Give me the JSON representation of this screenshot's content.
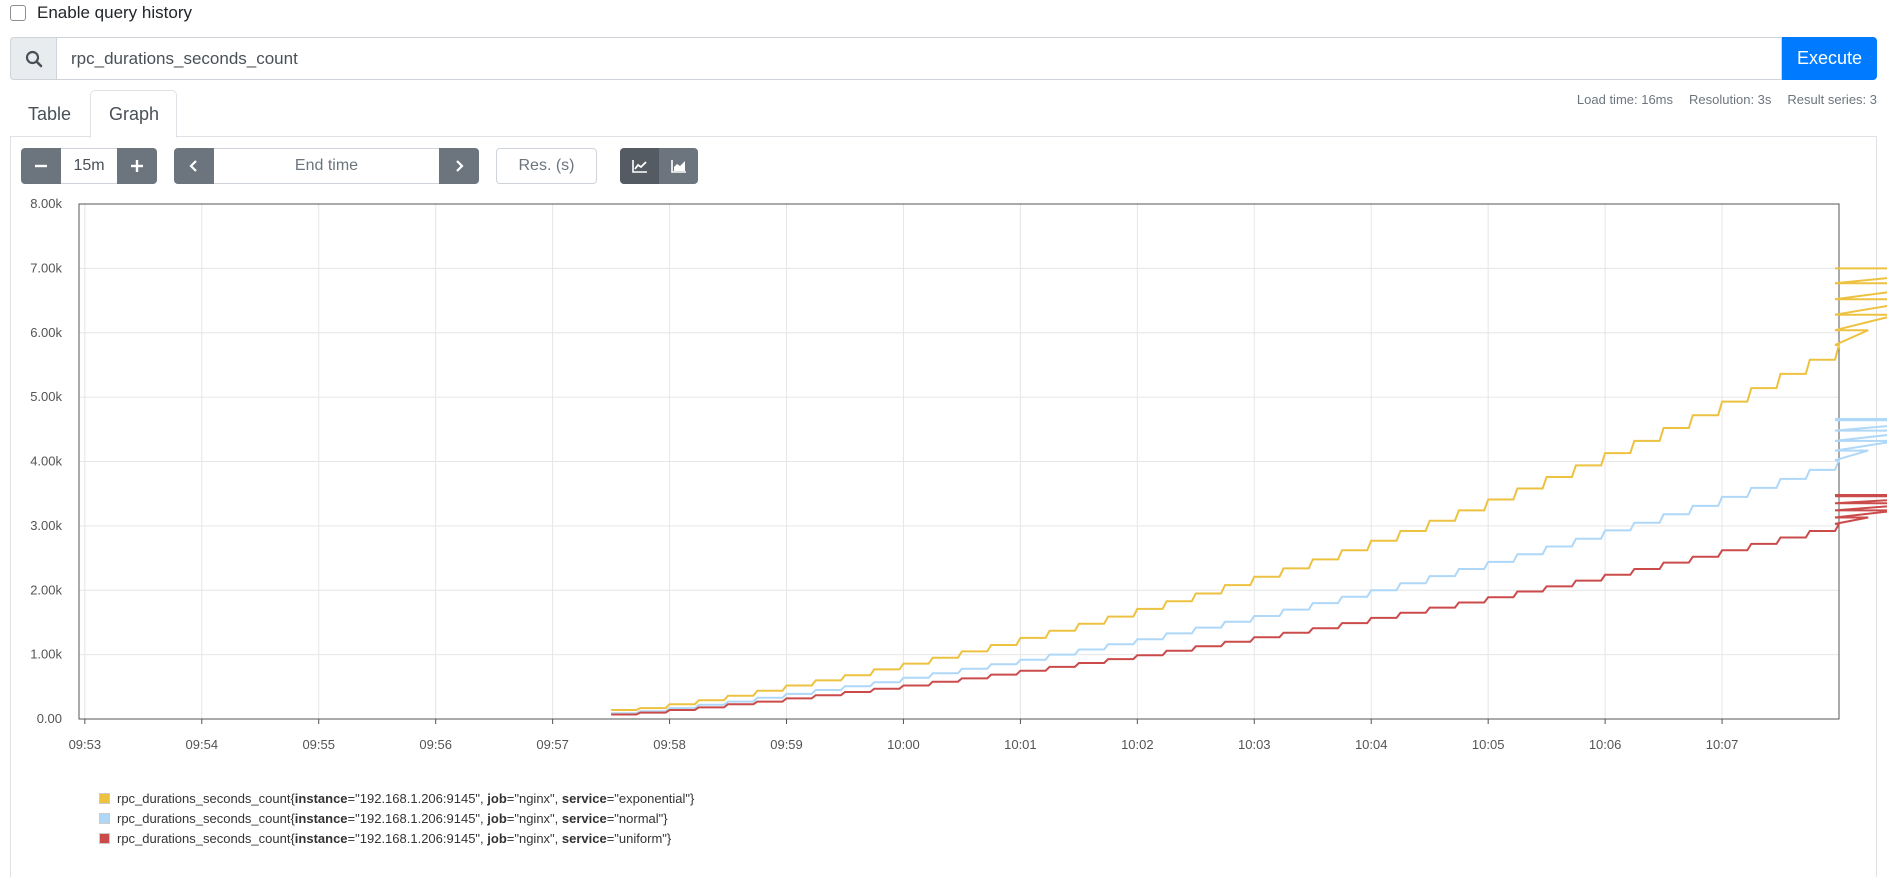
{
  "history": {
    "label": "Enable query history"
  },
  "query": {
    "value": "rpc_durations_seconds_count",
    "execute_label": "Execute"
  },
  "stats": {
    "load_time": "Load time: 16ms",
    "resolution": "Resolution: 3s",
    "result_series": "Result series: 3"
  },
  "tabs": {
    "table": "Table",
    "graph": "Graph"
  },
  "controls": {
    "range": "15m",
    "end_time_placeholder": "End time",
    "res_placeholder": "Res. (s)"
  },
  "colors": {
    "accent": "#007bff",
    "exponential": "#edc240",
    "normal": "#afd8f8",
    "uniform": "#cb4b4b"
  },
  "chart_data": {
    "type": "line",
    "x_ticks": [
      "09:53",
      "09:54",
      "09:55",
      "09:56",
      "09:57",
      "09:58",
      "09:59",
      "10:00",
      "10:01",
      "10:02",
      "10:03",
      "10:04",
      "10:05",
      "10:06",
      "10:07"
    ],
    "y_ticks": [
      "0.00",
      "1.00k",
      "2.00k",
      "3.00k",
      "4.00k",
      "5.00k",
      "6.00k",
      "7.00k",
      "8.00k"
    ],
    "xlim": [
      "09:52:57",
      "10:08:00"
    ],
    "ylim": [
      0,
      8000
    ],
    "step_seconds": 15,
    "series": [
      {
        "name": "exponential",
        "color": "#edc240",
        "start": "09:57:30",
        "values": [
          140,
          170,
          230,
          290,
          360,
          440,
          520,
          600,
          680,
          770,
          860,
          950,
          1050,
          1150,
          1260,
          1370,
          1480,
          1590,
          1710,
          1830,
          1950,
          2080,
          2210,
          2340,
          2480,
          2620,
          2770,
          2920,
          3080,
          3240,
          3410,
          3580,
          3760,
          3940,
          4130,
          4320,
          4520,
          4720,
          4930,
          5140,
          5360,
          5580,
          5810,
          6040,
          6280,
          6520,
          6770,
          7000
        ]
      },
      {
        "name": "normal",
        "color": "#afd8f8",
        "start": "09:57:30",
        "values": [
          90,
          120,
          170,
          220,
          270,
          330,
          390,
          450,
          510,
          570,
          640,
          710,
          780,
          850,
          920,
          1000,
          1080,
          1160,
          1240,
          1330,
          1420,
          1510,
          1600,
          1700,
          1800,
          1900,
          2000,
          2110,
          2220,
          2330,
          2440,
          2560,
          2680,
          2800,
          2930,
          3050,
          3180,
          3310,
          3450,
          3590,
          3730,
          3870,
          4020,
          4170,
          4320,
          4480,
          4640,
          4660
        ]
      },
      {
        "name": "uniform",
        "color": "#cb4b4b",
        "start": "09:57:30",
        "values": [
          70,
          100,
          140,
          180,
          230,
          270,
          320,
          370,
          420,
          470,
          520,
          580,
          630,
          690,
          750,
          810,
          870,
          930,
          990,
          1060,
          1130,
          1200,
          1270,
          1340,
          1410,
          1490,
          1570,
          1650,
          1730,
          1810,
          1890,
          1980,
          2060,
          2150,
          2240,
          2330,
          2430,
          2520,
          2620,
          2720,
          2820,
          2920,
          3030,
          3130,
          3240,
          3350,
          3460,
          3480
        ]
      }
    ]
  },
  "legend": [
    {
      "metric": "rpc_durations_seconds_count",
      "instance": "\"192.168.1.206:9145\"",
      "job": "\"nginx\"",
      "service": "\"exponential\"",
      "color": "#edc240"
    },
    {
      "metric": "rpc_durations_seconds_count",
      "instance": "\"192.168.1.206:9145\"",
      "job": "\"nginx\"",
      "service": "\"normal\"",
      "color": "#afd8f8"
    },
    {
      "metric": "rpc_durations_seconds_count",
      "instance": "\"192.168.1.206:9145\"",
      "job": "\"nginx\"",
      "service": "\"uniform\"",
      "color": "#cb4b4b"
    }
  ]
}
